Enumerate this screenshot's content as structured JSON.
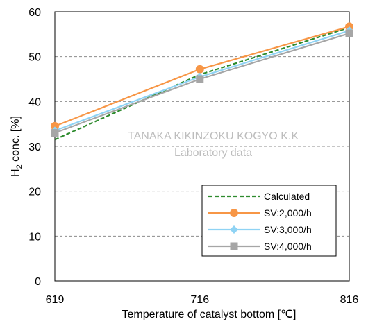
{
  "chart_data": {
    "type": "line",
    "x": [
      619,
      716,
      816
    ],
    "x_tick_labels": [
      "619",
      "716",
      "816"
    ],
    "xlabel": "Temperature of catalyst bottom [℃]",
    "ylabel_main": "H",
    "ylabel_sub": "2",
    "ylabel_rest": " conc. [%]",
    "ylim": [
      0,
      60
    ],
    "y_ticks": [
      0,
      10,
      20,
      30,
      40,
      50,
      60
    ],
    "y_tick_labels": [
      "0",
      "10",
      "20",
      "30",
      "40",
      "50",
      "60"
    ],
    "grid": "horizontal dashed",
    "legend_position": "bottom-right",
    "watermark": [
      "TANAKA KIKINZOKU KOGYO K.K",
      "Laboratory data"
    ],
    "series": [
      {
        "name": "Calculated",
        "values": [
          31.5,
          46.0,
          56.5
        ],
        "color": "#2e8b2e",
        "style": "dashed",
        "marker": "none"
      },
      {
        "name": "SV:2,000/h",
        "values": [
          34.5,
          47.2,
          56.7
        ],
        "color": "#f79646",
        "style": "solid",
        "marker": "circle"
      },
      {
        "name": "SV:3,000/h",
        "values": [
          33.5,
          45.5,
          55.8
        ],
        "color": "#8fd3f4",
        "style": "solid",
        "marker": "diamond"
      },
      {
        "name": "SV:4,000/h",
        "values": [
          33.0,
          45.0,
          55.2
        ],
        "color": "#a6a6a6",
        "style": "solid",
        "marker": "square"
      }
    ]
  }
}
